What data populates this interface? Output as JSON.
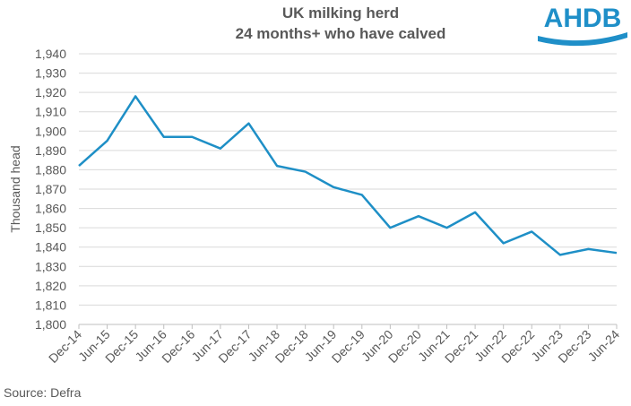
{
  "logo": "AHDB",
  "source": "Source: Defra",
  "chart_data": {
    "type": "line",
    "title": [
      "UK milking herd",
      "24 months+ who have calved"
    ],
    "y_label": "Thousand head",
    "categories": [
      "Dec-14",
      "Jun-15",
      "Dec-15",
      "Jun-16",
      "Dec-16",
      "Jun-17",
      "Dec-17",
      "Jun-18",
      "Dec-18",
      "Jun-19",
      "Dec-19",
      "Jun-20",
      "Dec-20",
      "Jun-21",
      "Dec-21",
      "Jun-22",
      "Dec-22",
      "Jun-23",
      "Dec-23",
      "Jun-24"
    ],
    "values": [
      1882,
      1895,
      1918,
      1897,
      1897,
      1891,
      1904,
      1882,
      1879,
      1871,
      1867,
      1850,
      1856,
      1850,
      1858,
      1842,
      1848,
      1836,
      1839,
      1837
    ],
    "color": "#1e8fc6",
    "ylim": [
      1800,
      1940
    ],
    "yticks": [
      {
        "value": 1800,
        "label": "1,800"
      },
      {
        "value": 1810,
        "label": "1,810"
      },
      {
        "value": 1820,
        "label": "1,820"
      },
      {
        "value": 1830,
        "label": "1,830"
      },
      {
        "value": 1840,
        "label": "1,840"
      },
      {
        "value": 1850,
        "label": "1,850"
      },
      {
        "value": 1860,
        "label": "1,860"
      },
      {
        "value": 1870,
        "label": "1,870"
      },
      {
        "value": 1880,
        "label": "1,880"
      },
      {
        "value": 1890,
        "label": "1,890"
      },
      {
        "value": 1900,
        "label": "1,900"
      },
      {
        "value": 1910,
        "label": "1,910"
      },
      {
        "value": 1920,
        "label": "1,920"
      },
      {
        "value": 1930,
        "label": "1,930"
      },
      {
        "value": 1940,
        "label": "1,940"
      }
    ],
    "grid": true
  }
}
